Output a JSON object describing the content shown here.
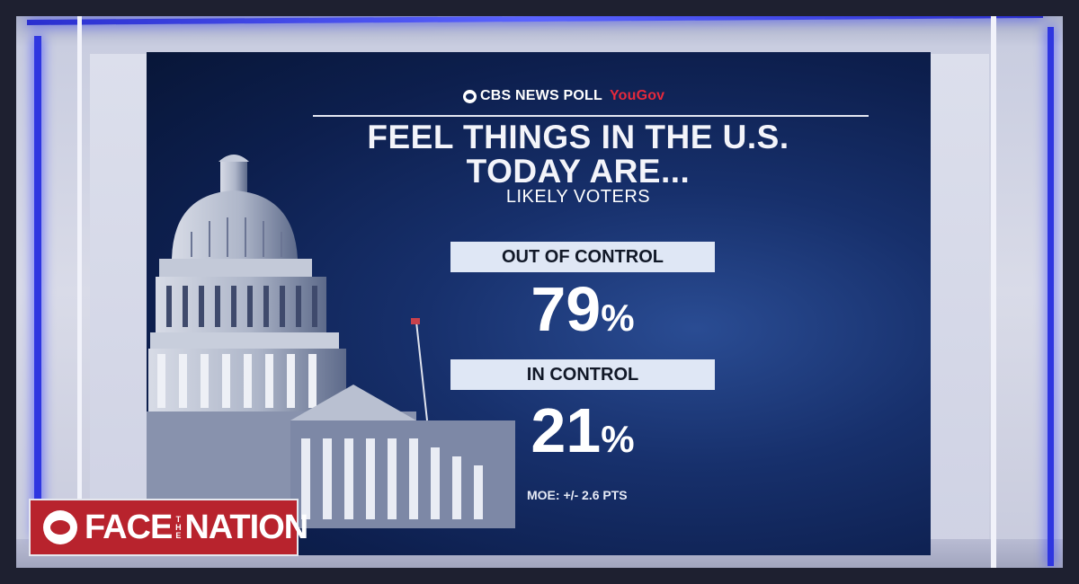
{
  "poll": {
    "brand": "CBS NEWS POLL",
    "partner": "YouGov"
  },
  "headline": {
    "line1": "FEEL THINGS IN THE U.S.",
    "line2": "TODAY ARE..."
  },
  "subhead": "LIKELY VOTERS",
  "results": [
    {
      "label": "OUT OF CONTROL",
      "number": "79",
      "unit": "%"
    },
    {
      "label": "IN CONTROL",
      "number": "21",
      "unit": "%"
    }
  ],
  "moe": "MOE: +/- 2.6 PTS",
  "show": {
    "word1": "FACE",
    "the": "THE",
    "word2": "NATION"
  },
  "colors": {
    "screen_bg": "#0d1f4e",
    "label_bar": "#dfe7f5",
    "yougov_red": "#e5293c",
    "show_red": "#b8232d",
    "neon_blue": "#2f36e0"
  }
}
